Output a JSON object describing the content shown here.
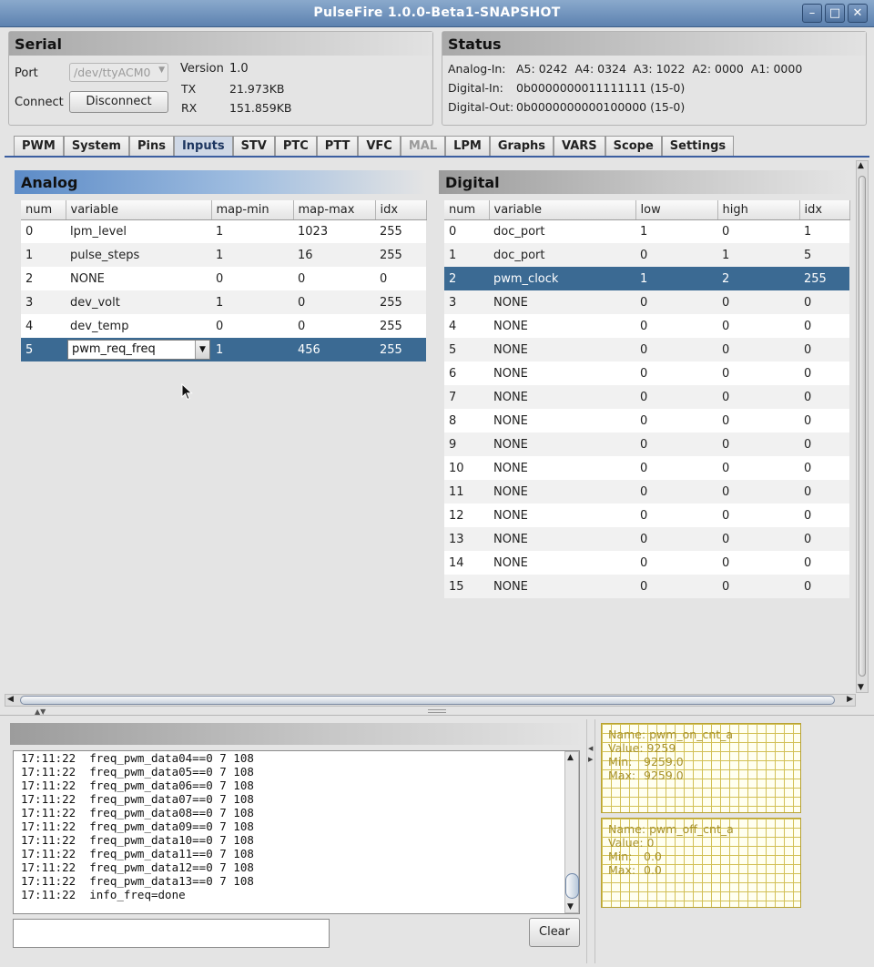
{
  "window": {
    "title": "PulseFire 1.0.0-Beta1-SNAPSHOT"
  },
  "serial": {
    "heading": "Serial",
    "port_label": "Port",
    "port_value": "/dev/ttyACM0",
    "connect_label": "Connect",
    "disconnect_button": "Disconnect",
    "version_label": "Version",
    "version_value": "1.0",
    "tx_label": "TX",
    "tx_value": "21.973KB",
    "rx_label": "RX",
    "rx_value": "151.859KB"
  },
  "status": {
    "heading": "Status",
    "analog_label": "Analog-In:",
    "analog_value": "A5: 0242  A4: 0324  A3: 1022  A2: 0000  A1: 0000",
    "digital_in_label": "Digital-In:",
    "digital_in_value": "0b0000000011111111 (15-0)",
    "digital_out_label": "Digital-Out:",
    "digital_out_value": "0b0000000000100000 (15-0)"
  },
  "tabs": [
    "PWM",
    "System",
    "Pins",
    "Inputs",
    "STV",
    "PTC",
    "PTT",
    "VFC",
    "MAL",
    "LPM",
    "Graphs",
    "VARS",
    "Scope",
    "Settings"
  ],
  "analog": {
    "heading": "Analog",
    "columns": [
      "num",
      "variable",
      "map-min",
      "map-max",
      "idx"
    ],
    "rows": [
      [
        "0",
        "lpm_level",
        "1",
        "1023",
        "255"
      ],
      [
        "1",
        "pulse_steps",
        "1",
        "16",
        "255"
      ],
      [
        "2",
        "NONE",
        "0",
        "0",
        "0"
      ],
      [
        "3",
        "dev_volt",
        "1",
        "0",
        "255"
      ],
      [
        "4",
        "dev_temp",
        "0",
        "0",
        "255"
      ],
      [
        "5",
        "pwm_req_freq",
        "1",
        "456",
        "255"
      ]
    ]
  },
  "digital": {
    "heading": "Digital",
    "columns": [
      "num",
      "variable",
      "low",
      "high",
      "idx"
    ],
    "rows": [
      [
        "0",
        "doc_port",
        "1",
        "0",
        "1"
      ],
      [
        "1",
        "doc_port",
        "0",
        "1",
        "5"
      ],
      [
        "2",
        "pwm_clock",
        "1",
        "2",
        "255"
      ],
      [
        "3",
        "NONE",
        "0",
        "0",
        "0"
      ],
      [
        "4",
        "NONE",
        "0",
        "0",
        "0"
      ],
      [
        "5",
        "NONE",
        "0",
        "0",
        "0"
      ],
      [
        "6",
        "NONE",
        "0",
        "0",
        "0"
      ],
      [
        "7",
        "NONE",
        "0",
        "0",
        "0"
      ],
      [
        "8",
        "NONE",
        "0",
        "0",
        "0"
      ],
      [
        "9",
        "NONE",
        "0",
        "0",
        "0"
      ],
      [
        "10",
        "NONE",
        "0",
        "0",
        "0"
      ],
      [
        "11",
        "NONE",
        "0",
        "0",
        "0"
      ],
      [
        "12",
        "NONE",
        "0",
        "0",
        "0"
      ],
      [
        "13",
        "NONE",
        "0",
        "0",
        "0"
      ],
      [
        "14",
        "NONE",
        "0",
        "0",
        "0"
      ],
      [
        "15",
        "NONE",
        "0",
        "0",
        "0"
      ]
    ]
  },
  "console": {
    "lines": [
      "17:11:22  freq_pwm_data04==0 7 108",
      "17:11:22  freq_pwm_data05==0 7 108",
      "17:11:22  freq_pwm_data06==0 7 108",
      "17:11:22  freq_pwm_data07==0 7 108",
      "17:11:22  freq_pwm_data08==0 7 108",
      "17:11:22  freq_pwm_data09==0 7 108",
      "17:11:22  freq_pwm_data10==0 7 108",
      "17:11:22  freq_pwm_data11==0 7 108",
      "17:11:22  freq_pwm_data12==0 7 108",
      "17:11:22  freq_pwm_data13==0 7 108",
      "17:11:22  info_freq=done"
    ],
    "input_value": "",
    "clear_button": "Clear"
  },
  "scopes": [
    {
      "name_label": "Name:",
      "name": "pwm_on_cnt_a",
      "value_label": "Value:",
      "value": "9259",
      "min_label": "Min:",
      "min": "9259.0",
      "max_label": "Max:",
      "max": "9259.0"
    },
    {
      "name_label": "Name:",
      "name": "pwm_off_cnt_a",
      "value_label": "Value:",
      "value": "0",
      "min_label": "Min:",
      "min": "0.0",
      "max_label": "Max:",
      "max": "0.0"
    }
  ],
  "colors": {
    "accent": "#3b6a93",
    "tab_underline": "#3b5ea0",
    "scope_grid": "#d2c055"
  }
}
